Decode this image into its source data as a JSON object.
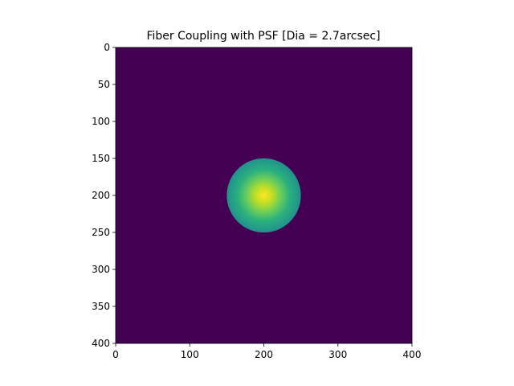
{
  "chart_data": {
    "type": "heatmap",
    "title": "Fiber Coupling with PSF [Dia = 2.7arcsec]",
    "xlabel": "",
    "ylabel": "",
    "xlim": [
      0,
      400
    ],
    "ylim": [
      400,
      0
    ],
    "x_ticks": [
      0,
      100,
      200,
      300,
      400
    ],
    "y_ticks": [
      0,
      50,
      100,
      150,
      200,
      250,
      300,
      350,
      400
    ],
    "grid": false,
    "colormap": "viridis",
    "background_value_color": "#440154",
    "aperture": {
      "center_x": 200,
      "center_y": 200,
      "radius": 50,
      "center_color": "#fde725",
      "edge_color": "#21918c"
    }
  }
}
